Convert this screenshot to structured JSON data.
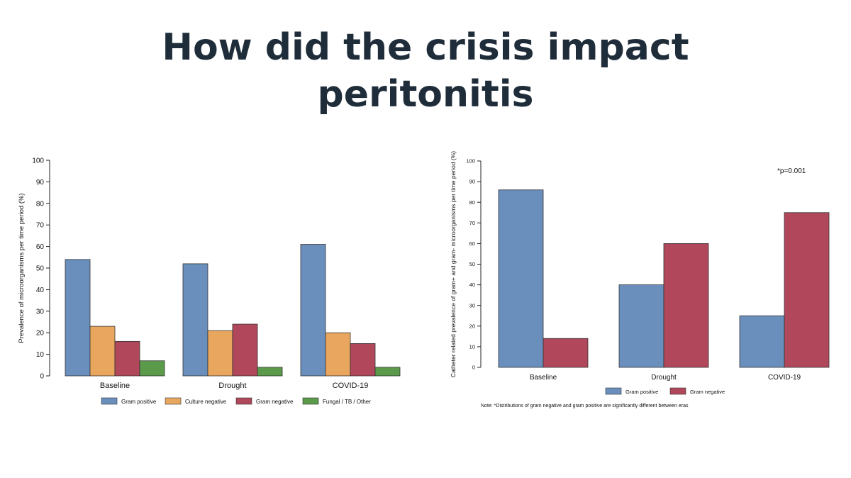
{
  "slide": {
    "title_line1": "How did the crisis impact",
    "title_line2": "peritonitis"
  },
  "colors": {
    "gram_positive": "#6a8fbd",
    "culture_negative": "#e8a65e",
    "gram_negative": "#b0475b",
    "fungal": "#5a9a4a",
    "title": "#1f2d3a"
  },
  "chart_data": [
    {
      "type": "bar",
      "categories": [
        "Baseline",
        "Drought",
        "COVID-19"
      ],
      "series": [
        {
          "name": "Gram positive",
          "values": [
            54,
            52,
            61
          ],
          "color": "#6a8fbd"
        },
        {
          "name": "Culture negative",
          "values": [
            23,
            21,
            20
          ],
          "color": "#e8a65e"
        },
        {
          "name": "Gram negative",
          "values": [
            16,
            24,
            15
          ],
          "color": "#b0475b"
        },
        {
          "name": "Fungal / TB / Other",
          "values": [
            7,
            4,
            4
          ],
          "color": "#5a9a4a"
        }
      ],
      "ylabel": "Prevalence of microorganisms per time period (%)",
      "ylim": [
        0,
        100
      ],
      "yticks": [
        0,
        10,
        20,
        30,
        40,
        50,
        60,
        70,
        80,
        90,
        100
      ],
      "legend": "bottom",
      "grid": false
    },
    {
      "type": "bar",
      "categories": [
        "Baseline",
        "Drought",
        "COVID-19"
      ],
      "series": [
        {
          "name": "Gram positive",
          "values": [
            86,
            40,
            25
          ],
          "color": "#6a8fbd"
        },
        {
          "name": "Gram negative",
          "values": [
            14,
            60,
            75
          ],
          "color": "#b0475b"
        }
      ],
      "ylabel": "Catheter related prevalence of gram+ and gram- microorganisms per time period (%)",
      "ylim": [
        0,
        100
      ],
      "yticks": [
        0,
        10,
        20,
        30,
        40,
        50,
        60,
        70,
        80,
        90,
        100
      ],
      "annotation": "*p=0.001",
      "note": "Note: *Distributions of gram negative and gram positive are significantly different between eras",
      "legend": "bottom",
      "grid": false
    }
  ]
}
